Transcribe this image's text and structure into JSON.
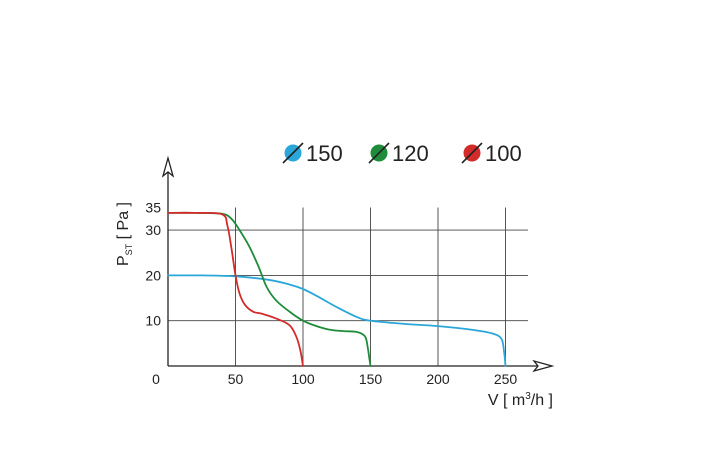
{
  "chart_data": {
    "type": "line",
    "xlabel": {
      "prefix": "V [ m",
      "sup": "3",
      "suffix": "/h ]"
    },
    "ylabel": {
      "main": "P",
      "sub": "ST",
      "suffix": " [ Pa ]"
    },
    "xlim": [
      0,
      280
    ],
    "ylim": [
      0,
      40
    ],
    "x_ticks": [
      50,
      100,
      150,
      200,
      250
    ],
    "y_ticks": [
      10,
      20,
      30,
      35
    ],
    "origin_label": "0",
    "grid": true,
    "legend_position": "top",
    "series": [
      {
        "name": "150",
        "color": "#2AA7D8",
        "x": [
          0,
          25,
          50,
          75,
          90,
          100,
          110,
          125,
          140,
          150,
          175,
          200,
          225,
          240,
          247,
          249,
          250
        ],
        "y": [
          20.0,
          20.0,
          19.8,
          19.0,
          18.0,
          17.0,
          15.5,
          13.0,
          10.8,
          10.0,
          9.3,
          8.8,
          8.0,
          7.2,
          6.0,
          3.0,
          0
        ]
      },
      {
        "name": "120",
        "color": "#1E8C3A",
        "x": [
          0,
          20,
          40,
          47,
          53,
          60,
          67,
          73,
          80,
          90,
          100,
          110,
          120,
          130,
          140,
          146,
          148,
          149,
          150
        ],
        "y": [
          33.8,
          33.8,
          33.6,
          32.5,
          30.0,
          26.5,
          22.0,
          17.5,
          14.5,
          12.0,
          10.0,
          8.8,
          8.0,
          7.7,
          7.5,
          6.5,
          4.0,
          2.0,
          0
        ]
      },
      {
        "name": "100",
        "color": "#D32A2A",
        "x": [
          0,
          20,
          40,
          44,
          47,
          50,
          53,
          57,
          63,
          70,
          80,
          90,
          95,
          98,
          100
        ],
        "y": [
          33.8,
          33.8,
          33.5,
          31.0,
          26.0,
          20.0,
          16.0,
          13.5,
          12.0,
          11.5,
          10.5,
          9.0,
          6.5,
          3.5,
          0
        ]
      }
    ]
  }
}
